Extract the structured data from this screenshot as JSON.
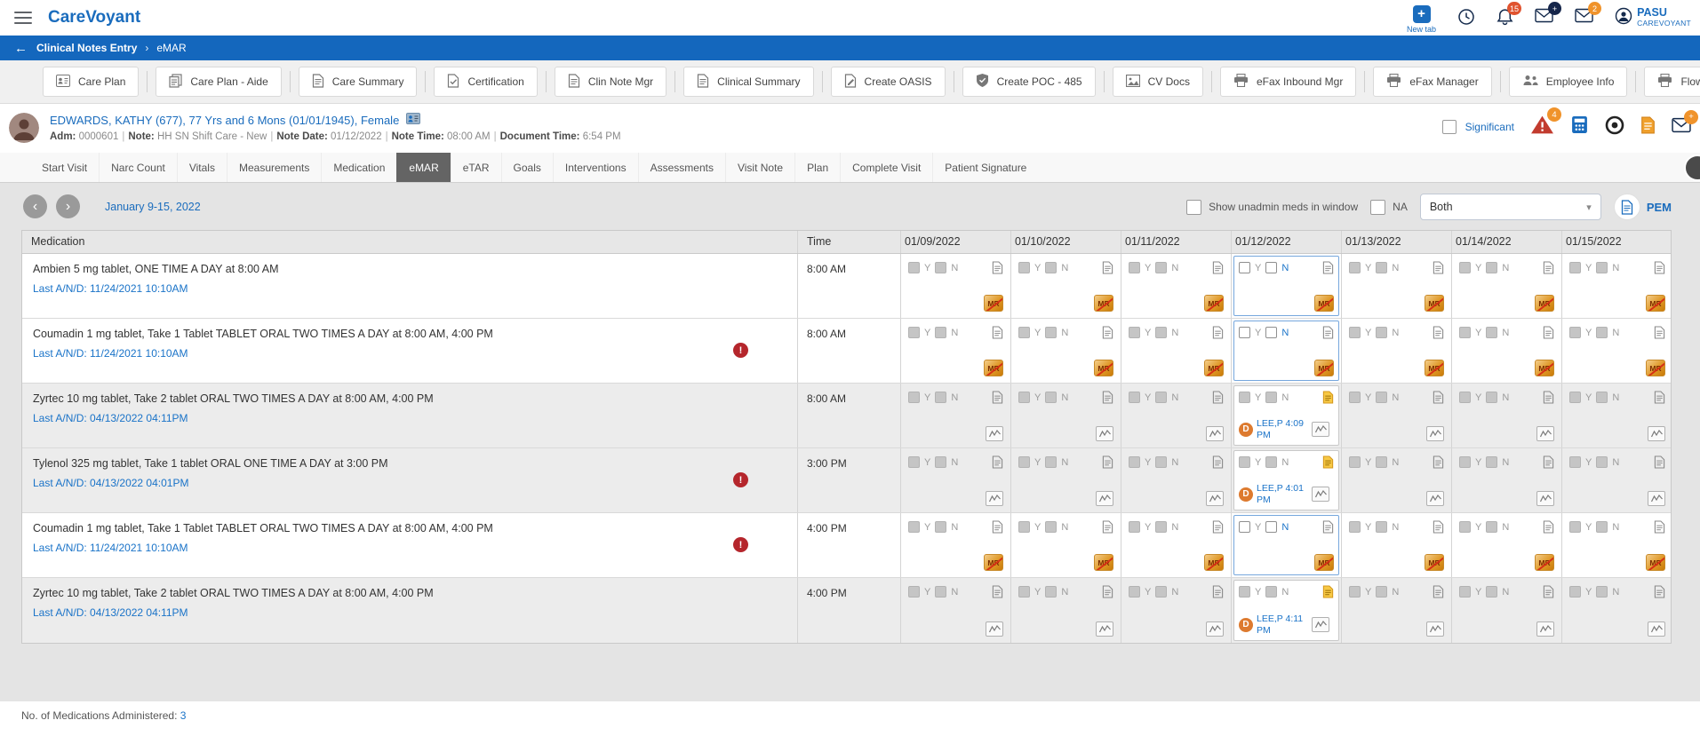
{
  "header": {
    "app_name": "CareVoyant",
    "new_tab_label": "New tab",
    "bell_badge": "15",
    "mail_plus_badge": "+",
    "mail_count_badge": "2",
    "user_name": "PASU",
    "user_org": "CAREVOYANT"
  },
  "breadcrumb": {
    "items": [
      "Clinical Notes Entry",
      "eMAR"
    ]
  },
  "toolbar": {
    "buttons": [
      {
        "label": "Care Plan",
        "icon": "contact-icon"
      },
      {
        "label": "Care Plan - Aide",
        "icon": "copy-icon"
      },
      {
        "label": "Care Summary",
        "icon": "doc-icon"
      },
      {
        "label": "Certification",
        "icon": "check-doc-icon"
      },
      {
        "label": "Clin Note Mgr",
        "icon": "doc-icon"
      },
      {
        "label": "Clinical Summary",
        "icon": "doc-icon"
      },
      {
        "label": "Create OASIS",
        "icon": "edit-doc-icon"
      },
      {
        "label": "Create POC - 485",
        "icon": "shield-check-icon"
      },
      {
        "label": "CV Docs",
        "icon": "image-icon"
      },
      {
        "label": "eFax Inbound Mgr",
        "icon": "printer-icon"
      },
      {
        "label": "eFax Manager",
        "icon": "printer-icon"
      },
      {
        "label": "Employee Info",
        "icon": "people-icon"
      },
      {
        "label": "Flow Sheet Intvn",
        "icon": "printer-icon"
      }
    ]
  },
  "patient": {
    "name_line": "EDWARDS, KATHY (677), 77 Yrs and 6 Mons (01/01/1945), Female",
    "details": [
      {
        "label": "Adm:",
        "value": "0000601"
      },
      {
        "label": "Note:",
        "value": "HH SN Shift Care - New"
      },
      {
        "label": "Note Date:",
        "value": "01/12/2022"
      },
      {
        "label": "Note Time:",
        "value": "08:00 AM"
      },
      {
        "label": "Document Time:",
        "value": "6:54 PM"
      }
    ],
    "significant_label": "Significant",
    "alert_badge": "4"
  },
  "tabs": {
    "items": [
      "Start Visit",
      "Narc Count",
      "Vitals",
      "Measurements",
      "Medication",
      "eMAR",
      "eTAR",
      "Goals",
      "Interventions",
      "Assessments",
      "Visit Note",
      "Plan",
      "Complete Visit",
      "Patient Signature"
    ],
    "active": "eMAR"
  },
  "emar": {
    "week_label": "January 9-15, 2022",
    "show_unadmin_label": "Show unadmin meds in window",
    "na_label": "NA",
    "filter_value": "Both",
    "pem_label": "PEM",
    "header": {
      "medication": "Medication",
      "time": "Time"
    },
    "dates": [
      "01/09/2022",
      "01/10/2022",
      "01/11/2022",
      "01/12/2022",
      "01/13/2022",
      "01/14/2022",
      "01/15/2022"
    ],
    "active_date": "01/12/2022",
    "yes_label": "Y",
    "no_label": "N",
    "mr_label": "MR",
    "rows": [
      {
        "medication": "Ambien 5 mg tablet, ONE TIME A DAY at 8:00 AM",
        "last_and": "Last A/N/D: 11/24/2021 10:10AM",
        "alert": false,
        "time": "8:00 AM",
        "administered": false,
        "admin": null
      },
      {
        "medication": "Coumadin 1 mg tablet, Take 1 Tablet TABLET ORAL TWO TIMES A DAY at 8:00 AM, 4:00 PM",
        "last_and": "Last A/N/D: 11/24/2021 10:10AM",
        "alert": true,
        "time": "8:00 AM",
        "administered": false,
        "admin": null
      },
      {
        "medication": "Zyrtec 10 mg tablet, Take 2 tablet ORAL TWO TIMES A DAY at 8:00 AM, 4:00 PM",
        "last_and": "Last A/N/D: 04/13/2022 04:11PM",
        "alert": false,
        "time": "8:00 AM",
        "administered": true,
        "admin": {
          "initial": "D",
          "by": "LEE,P 4:09 PM"
        }
      },
      {
        "medication": "Tylenol 325 mg tablet, Take 1 tablet ORAL ONE TIME A DAY at 3:00 PM",
        "last_and": "Last A/N/D: 04/13/2022 04:01PM",
        "alert": true,
        "time": "3:00 PM",
        "administered": true,
        "admin": {
          "initial": "D",
          "by": "LEE,P 4:01 PM"
        }
      },
      {
        "medication": "Coumadin 1 mg tablet, Take 1 Tablet TABLET ORAL TWO TIMES A DAY at 8:00 AM, 4:00 PM",
        "last_and": "Last A/N/D: 11/24/2021 10:10AM",
        "alert": true,
        "time": "4:00 PM",
        "administered": false,
        "admin": null
      },
      {
        "medication": "Zyrtec 10 mg tablet, Take 2 tablet ORAL TWO TIMES A DAY at 8:00 AM, 4:00 PM",
        "last_and": "Last A/N/D: 04/13/2022 04:11PM",
        "alert": false,
        "time": "4:00 PM",
        "administered": true,
        "admin": {
          "initial": "D",
          "by": "LEE,P 4:11 PM"
        }
      }
    ],
    "footer_label": "No. of Medications Administered:",
    "footer_count": "3"
  }
}
